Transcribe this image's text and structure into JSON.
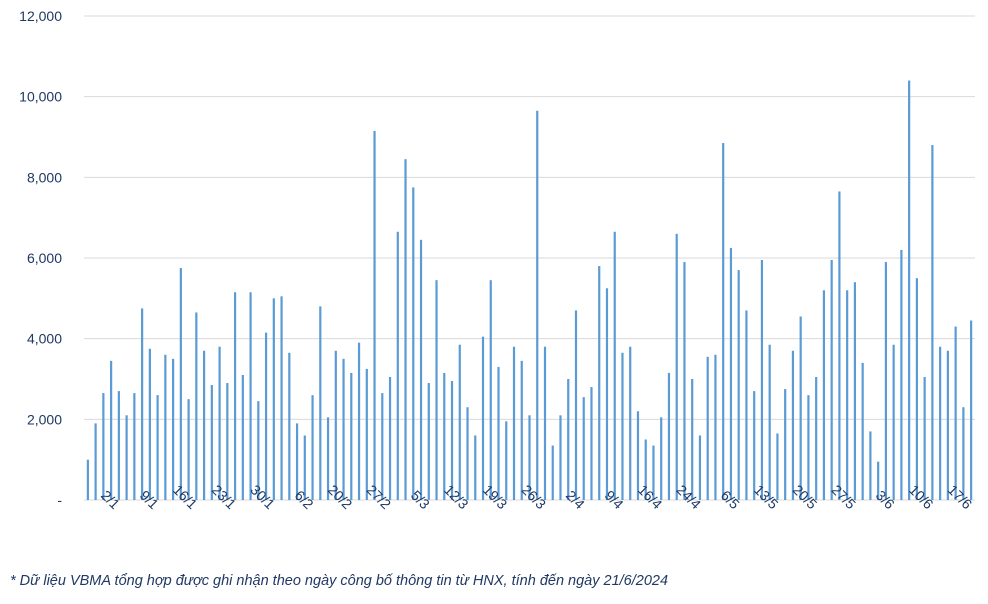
{
  "footnote": "* Dữ liệu VBMA tổng hợp được ghi nhận theo ngày công bố thông tin từ HNX, tính đến ngày 21/6/2024",
  "chart_data": {
    "type": "bar",
    "title": "",
    "xlabel": "",
    "ylabel": "",
    "ylim": [
      0,
      12000
    ],
    "y_ticks": [
      0,
      2000,
      4000,
      6000,
      8000,
      10000,
      12000
    ],
    "y_tick_labels": [
      "-",
      "2,000",
      "4,000",
      "6,000",
      "8,000",
      "10,000",
      "12,000"
    ],
    "grid": true,
    "bar_color": "#5b9bd5",
    "x_tick_labels": [
      "2/1",
      "9/1",
      "16/1",
      "23/1",
      "30/1",
      "6/2",
      "20/2",
      "27/2",
      "5/3",
      "12/3",
      "19/3",
      "26/3",
      "2/4",
      "9/4",
      "16/4",
      "24/4",
      "6/5",
      "13/5",
      "20/5",
      "27/5",
      "3/6",
      "10/6",
      "17/6"
    ],
    "x_tick_every": 5,
    "values": [
      1000,
      1900,
      2650,
      3450,
      2700,
      2100,
      2650,
      4750,
      3750,
      2600,
      3600,
      3500,
      5750,
      2500,
      4650,
      3700,
      2850,
      3800,
      2900,
      5150,
      3100,
      5150,
      2450,
      4150,
      5000,
      5050,
      3650,
      1900,
      1600,
      2600,
      4800,
      2050,
      3700,
      3500,
      3150,
      3900,
      3250,
      9150,
      2650,
      3050,
      6650,
      8450,
      7750,
      6450,
      2900,
      5450,
      3150,
      2950,
      3850,
      2300,
      1600,
      4050,
      5450,
      3300,
      1950,
      3800,
      3450,
      2100,
      9650,
      3800,
      1350,
      2100,
      3000,
      4700,
      2550,
      2800,
      5800,
      5250,
      6650,
      3650,
      3800,
      2200,
      1500,
      1350,
      2050,
      3150,
      6600,
      5900,
      3000,
      1600,
      3550,
      3600,
      8850,
      6250,
      5700,
      4700,
      2700,
      5950,
      3850,
      1650,
      2750,
      3700,
      4550,
      2600,
      3050,
      5200,
      5950,
      7650,
      5200,
      5400,
      3400,
      1700,
      950,
      5900,
      3850,
      6200,
      10400,
      5500,
      3050,
      8800,
      3800,
      3700,
      4300,
      2300,
      4450
    ]
  }
}
